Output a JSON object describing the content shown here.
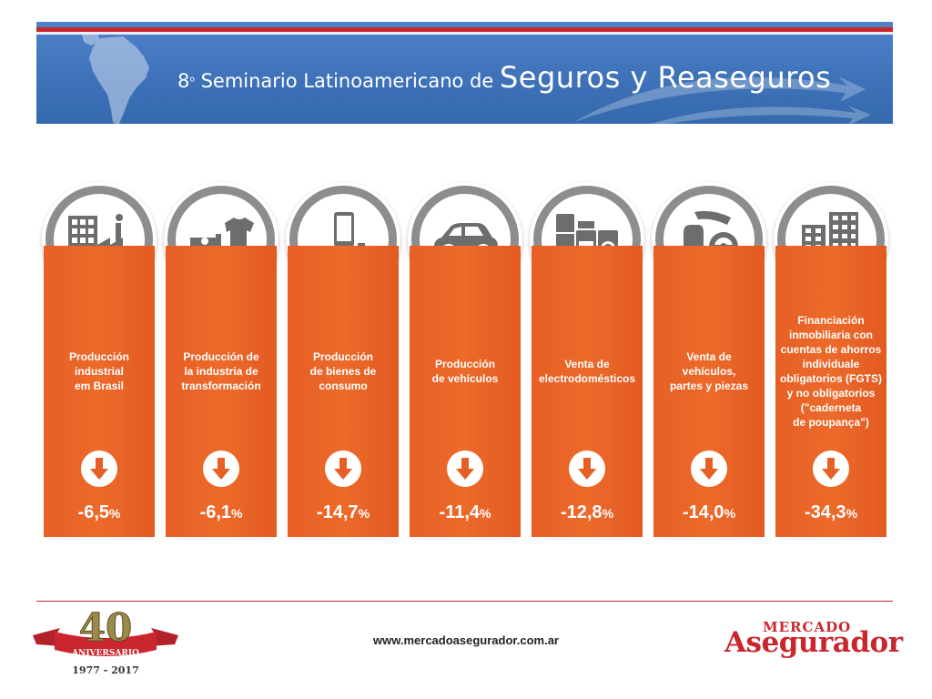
{
  "banner": {
    "number": "8",
    "ordinal": "o",
    "title_small": " Seminario Latinoamericano de ",
    "title_big": "Seguros y Reaseguros"
  },
  "cards": [
    {
      "lines": [
        "Producción",
        "industrial",
        "em Brasil"
      ],
      "value": "-6,5",
      "unit": "%",
      "icon": "factory-icon"
    },
    {
      "lines": [
        "Producción de",
        "la industria de",
        "transformación"
      ],
      "value": "-6,1",
      "unit": "%",
      "icon": "sewing-machine-icon"
    },
    {
      "lines": [
        "Producción",
        "de bienes de",
        "consumo"
      ],
      "value": "-14,7",
      "unit": "%",
      "icon": "consumer-goods-icon"
    },
    {
      "lines": [
        "Producción",
        "de vehículos"
      ],
      "value": "-11,4",
      "unit": "%",
      "icon": "car-icon"
    },
    {
      "lines": [
        "Venta de",
        "electrodomésticos"
      ],
      "value": "-12,8",
      "unit": "%",
      "icon": "appliances-icon"
    },
    {
      "lines": [
        "Venta de",
        "vehículos,",
        "partes y piezas"
      ],
      "value": "-14,0",
      "unit": "%",
      "icon": "car-parts-icon"
    },
    {
      "lines": [
        "Financiación",
        "inmobiliaria con",
        "cuentas de ahorros",
        "individuale",
        "obligatorios (FGTS)",
        "y no obligatorios",
        "(\"caderneta",
        "de poupança\")"
      ],
      "value": "-34,3",
      "unit": "%",
      "icon": "buildings-icon"
    }
  ],
  "footer": {
    "url": "www.mercadoasegurador.com.ar",
    "anniversary_number": "40",
    "anniversary_label": "ANIVERSARIO",
    "anniversary_years": "1977 - 2017",
    "brand_top": "MERCADO",
    "brand_bottom": "Asegurador"
  },
  "colors": {
    "banner_blue": "#3f72b9",
    "card_orange": "#e75f25",
    "ring_gray": "#8d8d8d",
    "icon_gray": "#6d6d6d",
    "brand_red": "#c9272d"
  }
}
